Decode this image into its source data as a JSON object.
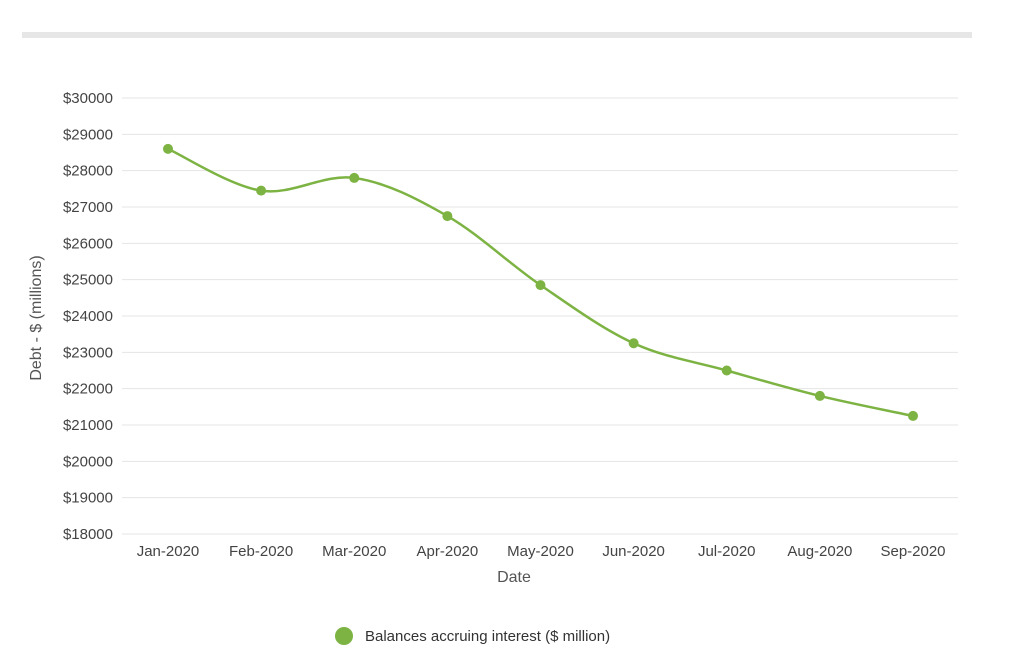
{
  "chart_data": {
    "type": "line",
    "title": "",
    "xlabel": "Date",
    "ylabel": "Debt - $ (millions)",
    "categories": [
      "Jan-2020",
      "Feb-2020",
      "Mar-2020",
      "Apr-2020",
      "May-2020",
      "Jun-2020",
      "Jul-2020",
      "Aug-2020",
      "Sep-2020"
    ],
    "series": [
      {
        "name": "Balances accruing interest ($ million)",
        "values": [
          28600,
          27450,
          27800,
          26750,
          24850,
          23250,
          22500,
          21800,
          21250
        ],
        "color": "#7cb342"
      }
    ],
    "ylim": [
      18000,
      30000
    ],
    "yticks": [
      18000,
      19000,
      20000,
      21000,
      22000,
      23000,
      24000,
      25000,
      26000,
      27000,
      28000,
      29000,
      30000
    ],
    "ytick_labels": [
      "$18000",
      "$19000",
      "$20000",
      "$21000",
      "$22000",
      "$23000",
      "$24000",
      "$25000",
      "$26000",
      "$27000",
      "$28000",
      "$29000",
      "$30000"
    ],
    "grid": true,
    "legend_position": "bottom-center",
    "line_smooth": true
  }
}
